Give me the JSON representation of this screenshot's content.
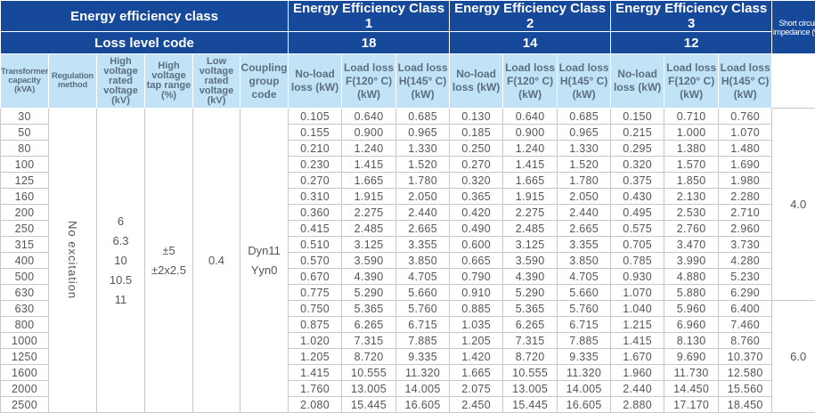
{
  "header": {
    "efficiency_class_label": "Energy efficiency class",
    "loss_level_label": "Loss level code",
    "classes": [
      {
        "name": "Energy Efficiency Class 1",
        "code": "18"
      },
      {
        "name": "Energy Efficiency Class 2",
        "code": "14"
      },
      {
        "name": "Energy Efficiency Class 3",
        "code": "12"
      }
    ],
    "short_circuit": "Short circuit impedance (%)"
  },
  "columns": {
    "capacity": "Transformer capacity (kVA)",
    "regulation": "Regulation method",
    "hv_voltage": "High voltage rated voltage (kV)",
    "tap_range": "High voltage tap range (%)",
    "lv_voltage": "Low voltage rated voltage (kV)",
    "coupling": "Coupling group code",
    "no_load": "No-load loss (kW)",
    "load_f": "Load loss F(120° C) (kW)",
    "load_h": "Load loss H(145° C) (kW)"
  },
  "common": {
    "regulation": "No excitation",
    "hv_voltages": [
      "6",
      "6.3",
      "10",
      "10.5",
      "11"
    ],
    "tap_ranges": [
      "±5",
      "±2x2.5"
    ],
    "lv_voltage": "0.4",
    "coupling": [
      "Dyn11",
      "Yyn0"
    ]
  },
  "impedance_groups": [
    {
      "value": "4.0",
      "rows": 12
    },
    {
      "value": "6.0",
      "rows": 7
    }
  ],
  "rows": [
    {
      "cap": "30",
      "v": [
        "0.105",
        "0.640",
        "0.685",
        "0.130",
        "0.640",
        "0.685",
        "0.150",
        "0.710",
        "0.760"
      ]
    },
    {
      "cap": "50",
      "v": [
        "0.155",
        "0.900",
        "0.965",
        "0.185",
        "0.900",
        "0.965",
        "0.215",
        "1.000",
        "1.070"
      ]
    },
    {
      "cap": "80",
      "v": [
        "0.210",
        "1.240",
        "1.330",
        "0.250",
        "1.240",
        "1.330",
        "0.295",
        "1.380",
        "1.480"
      ]
    },
    {
      "cap": "100",
      "v": [
        "0.230",
        "1.415",
        "1.520",
        "0.270",
        "1.415",
        "1.520",
        "0.320",
        "1.570",
        "1.690"
      ]
    },
    {
      "cap": "125",
      "v": [
        "0.270",
        "1.665",
        "1.780",
        "0.320",
        "1.665",
        "1.780",
        "0.375",
        "1.850",
        "1.980"
      ]
    },
    {
      "cap": "160",
      "v": [
        "0.310",
        "1.915",
        "2.050",
        "0.365",
        "1.915",
        "2.050",
        "0.430",
        "2.130",
        "2.280"
      ]
    },
    {
      "cap": "200",
      "v": [
        "0.360",
        "2.275",
        "2.440",
        "0.420",
        "2.275",
        "2.440",
        "0.495",
        "2.530",
        "2.710"
      ]
    },
    {
      "cap": "250",
      "v": [
        "0.415",
        "2.485",
        "2.665",
        "0.490",
        "2.485",
        "2.665",
        "0.575",
        "2.760",
        "2.960"
      ]
    },
    {
      "cap": "315",
      "v": [
        "0.510",
        "3.125",
        "3.355",
        "0.600",
        "3.125",
        "3.355",
        "0.705",
        "3.470",
        "3.730"
      ]
    },
    {
      "cap": "400",
      "v": [
        "0.570",
        "3.590",
        "3.850",
        "0.665",
        "3.590",
        "3.850",
        "0.785",
        "3.990",
        "4.280"
      ]
    },
    {
      "cap": "500",
      "v": [
        "0.670",
        "4.390",
        "4.705",
        "0.790",
        "4.390",
        "4.705",
        "0.930",
        "4.880",
        "5.230"
      ]
    },
    {
      "cap": "630",
      "v": [
        "0.775",
        "5.290",
        "5.660",
        "0.910",
        "5.290",
        "5.660",
        "1.070",
        "5.880",
        "6.290"
      ]
    },
    {
      "cap": "630",
      "v": [
        "0.750",
        "5.365",
        "5.760",
        "0.885",
        "5.365",
        "5.760",
        "1.040",
        "5.960",
        "6.400"
      ]
    },
    {
      "cap": "800",
      "v": [
        "0.875",
        "6.265",
        "6.715",
        "1.035",
        "6.265",
        "6.715",
        "1.215",
        "6.960",
        "7.460"
      ]
    },
    {
      "cap": "1000",
      "v": [
        "1.020",
        "7.315",
        "7.885",
        "1.205",
        "7.315",
        "7.885",
        "1.415",
        "8.130",
        "8.760"
      ]
    },
    {
      "cap": "1250",
      "v": [
        "1.205",
        "8.720",
        "9.335",
        "1.420",
        "8.720",
        "9.335",
        "1.670",
        "9.690",
        "10.370"
      ]
    },
    {
      "cap": "1600",
      "v": [
        "1.415",
        "10.555",
        "11.320",
        "1.665",
        "10.555",
        "11.320",
        "1.960",
        "11.730",
        "12.580"
      ]
    },
    {
      "cap": "2000",
      "v": [
        "1.760",
        "13.005",
        "14.005",
        "2.075",
        "13.005",
        "14.005",
        "2.440",
        "14.450",
        "15.560"
      ]
    },
    {
      "cap": "2500",
      "v": [
        "2.080",
        "15.445",
        "16.605",
        "2.450",
        "15.445",
        "16.605",
        "2.880",
        "17.170",
        "18.450"
      ]
    }
  ]
}
